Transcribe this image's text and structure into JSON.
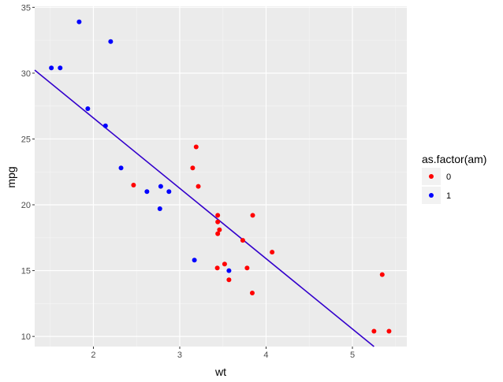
{
  "chart_data": {
    "type": "scatter",
    "xlabel": "wt",
    "ylabel": "mpg",
    "xlim": [
      1.32,
      5.63
    ],
    "ylim": [
      9.23,
      35.08
    ],
    "x_ticks": [
      2,
      3,
      4,
      5
    ],
    "y_ticks": [
      10,
      15,
      20,
      25,
      30,
      35
    ],
    "grid": true,
    "legend": {
      "title": "as.factor(am)",
      "position": "right",
      "entries": [
        {
          "label": "0",
          "color": "#ff0000"
        },
        {
          "label": "1",
          "color": "#0000ff"
        }
      ]
    },
    "series": [
      {
        "name": "0",
        "color": "#ff0000",
        "points": [
          [
            3.215,
            21.4
          ],
          [
            3.44,
            18.7
          ],
          [
            3.46,
            18.1
          ],
          [
            3.57,
            14.3
          ],
          [
            3.19,
            24.4
          ],
          [
            3.15,
            22.8
          ],
          [
            3.44,
            19.2
          ],
          [
            3.44,
            17.8
          ],
          [
            4.07,
            16.4
          ],
          [
            3.73,
            17.3
          ],
          [
            3.78,
            15.2
          ],
          [
            5.25,
            10.4
          ],
          [
            5.424,
            10.4
          ],
          [
            5.345,
            14.7
          ],
          [
            2.465,
            21.5
          ],
          [
            3.52,
            15.5
          ],
          [
            3.435,
            15.2
          ],
          [
            3.84,
            13.3
          ],
          [
            3.845,
            19.2
          ]
        ]
      },
      {
        "name": "1",
        "color": "#0000ff",
        "points": [
          [
            2.62,
            21.0
          ],
          [
            2.875,
            21.0
          ],
          [
            2.32,
            22.8
          ],
          [
            2.2,
            32.4
          ],
          [
            1.615,
            30.4
          ],
          [
            1.835,
            33.9
          ],
          [
            1.935,
            27.3
          ],
          [
            2.14,
            26.0
          ],
          [
            1.513,
            30.4
          ],
          [
            3.17,
            15.8
          ],
          [
            2.77,
            19.7
          ],
          [
            3.57,
            15.0
          ],
          [
            2.78,
            21.4
          ]
        ]
      }
    ],
    "fit_line": {
      "color": "#3300cc",
      "intercept": 37.285,
      "slope": -5.344
    }
  }
}
